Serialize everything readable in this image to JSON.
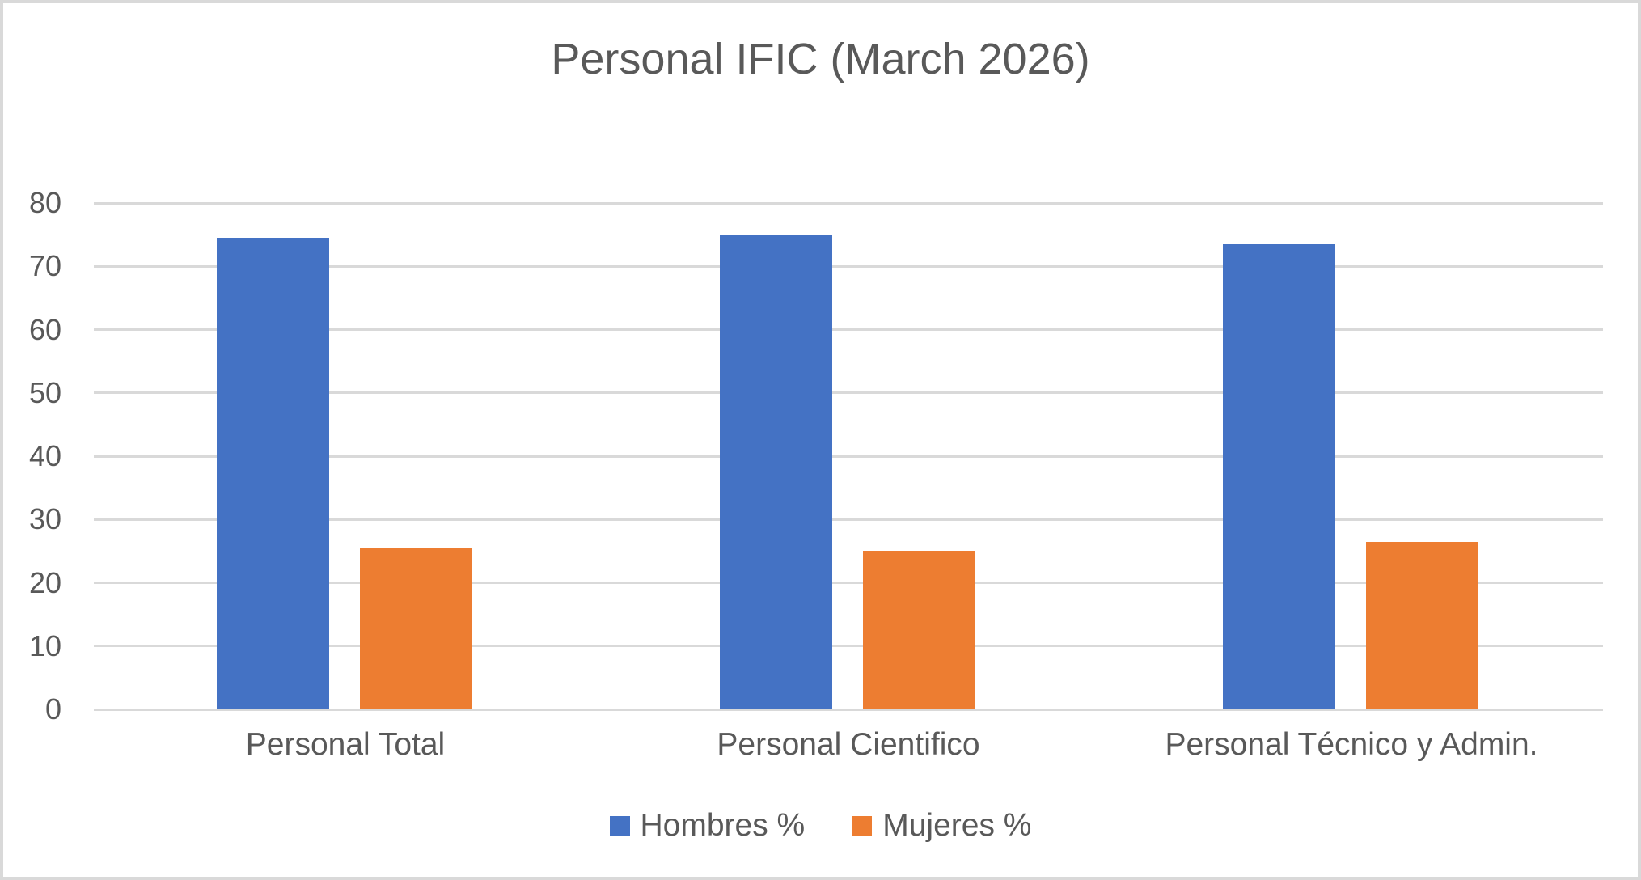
{
  "chart_data": {
    "type": "bar",
    "title": "Personal IFIC (March 2026)",
    "categories": [
      "Personal Total",
      "Personal Cientifico",
      "Personal Técnico y Admin."
    ],
    "series": [
      {
        "name": "Hombres %",
        "color": "#4472C4",
        "values": [
          74.5,
          75,
          73.5
        ]
      },
      {
        "name": "Mujeres %",
        "color": "#ED7D31",
        "values": [
          25.5,
          25,
          26.5
        ]
      }
    ],
    "y_axis": {
      "min": 0,
      "max": 80,
      "step": 10,
      "ticks": [
        0,
        10,
        20,
        30,
        40,
        50,
        60,
        70,
        80
      ]
    },
    "grid": true,
    "legend_position": "bottom",
    "colors": {
      "text": "#595959",
      "gridline": "#d9d9d9",
      "frame_border": "#d9d9d9",
      "background": "#ffffff"
    }
  }
}
